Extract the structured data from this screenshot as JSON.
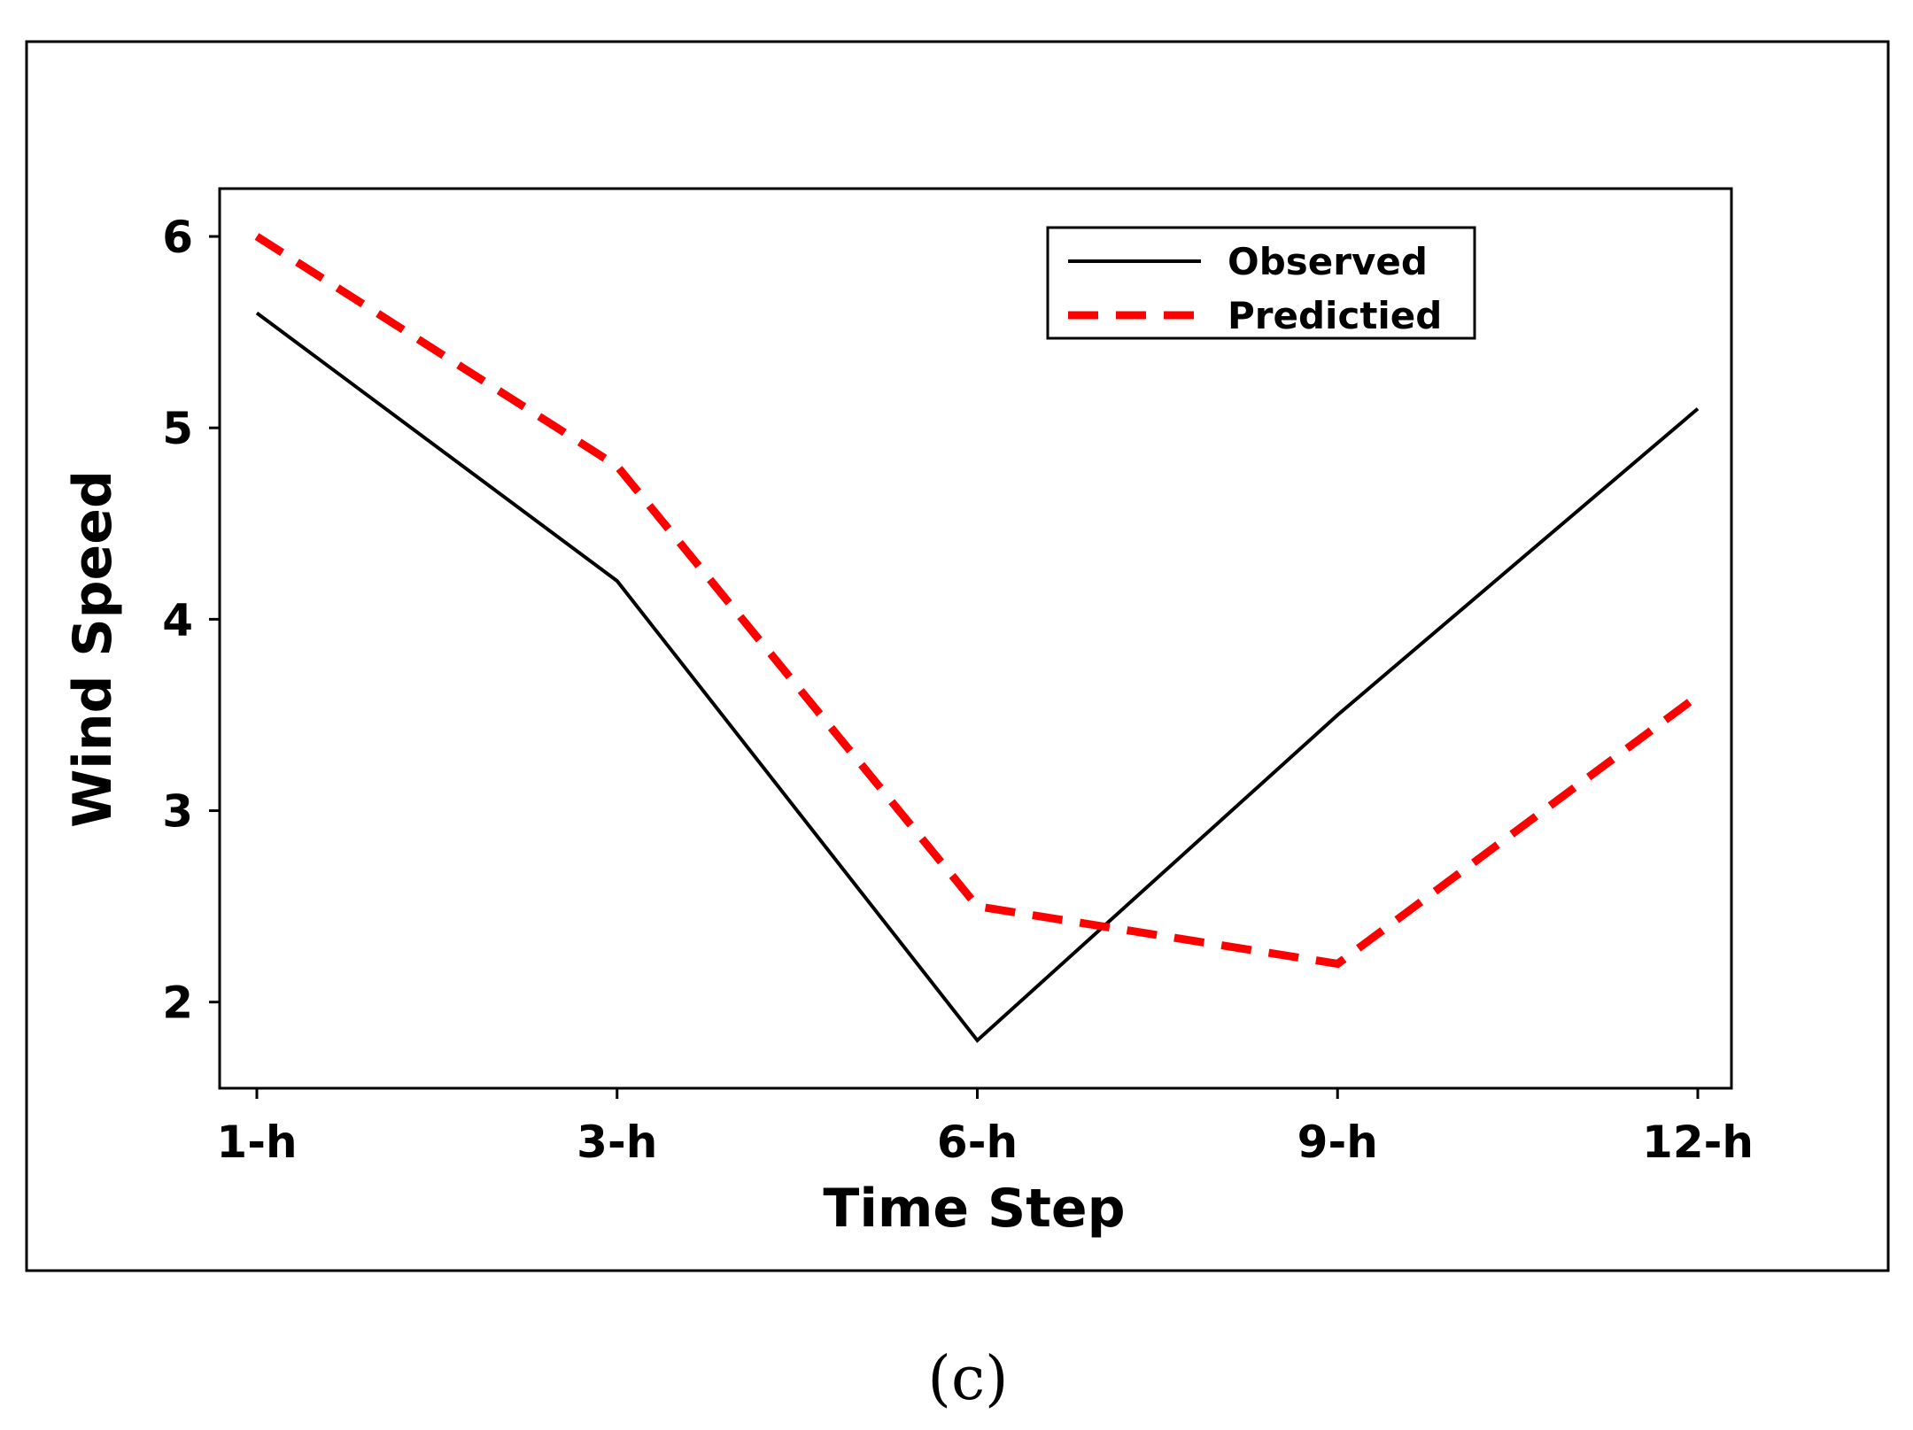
{
  "chart_data": {
    "type": "line",
    "title": "",
    "xlabel": "Time Step",
    "ylabel": "Wind Speed",
    "categories": [
      "1-h",
      "3-h",
      "6-h",
      "9-h",
      "12-h"
    ],
    "yticks": [
      "2",
      "3",
      "4",
      "5",
      "6"
    ],
    "ylim": [
      1.55,
      6.25
    ],
    "grid": false,
    "legend_position": "top-right",
    "series": [
      {
        "name": "Observed",
        "values": [
          5.6,
          4.2,
          1.8,
          3.5,
          5.1
        ],
        "color": "#000000",
        "style": "solid"
      },
      {
        "name": "Predictied",
        "values": [
          6.0,
          4.8,
          2.5,
          2.2,
          3.6
        ],
        "color": "#ff0000",
        "style": "dashed"
      }
    ]
  },
  "caption": "(c)"
}
